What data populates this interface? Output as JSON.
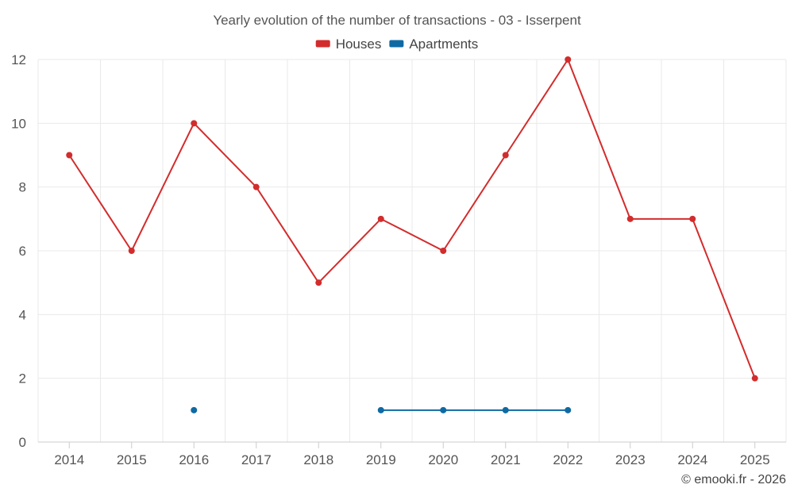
{
  "chart_data": {
    "type": "line",
    "title": "Yearly evolution of the number of transactions - 03 - Isserpent",
    "categories": [
      "2014",
      "2015",
      "2016",
      "2017",
      "2018",
      "2019",
      "2020",
      "2021",
      "2022",
      "2023",
      "2024",
      "2025"
    ],
    "ylim": [
      0,
      12
    ],
    "yticks": [
      "0",
      "2",
      "4",
      "6",
      "8",
      "10",
      "12"
    ],
    "grid": true,
    "legend_position": "top-center",
    "series": [
      {
        "name": "Houses",
        "color": "#d32c2c",
        "values": [
          9,
          6,
          10,
          8,
          5,
          7,
          6,
          9,
          12,
          7,
          7,
          2
        ]
      },
      {
        "name": "Apartments",
        "color": "#0f6aa3",
        "values": [
          null,
          null,
          1,
          null,
          null,
          1,
          1,
          1,
          1,
          null,
          null,
          null
        ]
      }
    ],
    "credit": "© emooki.fr - 2026"
  }
}
